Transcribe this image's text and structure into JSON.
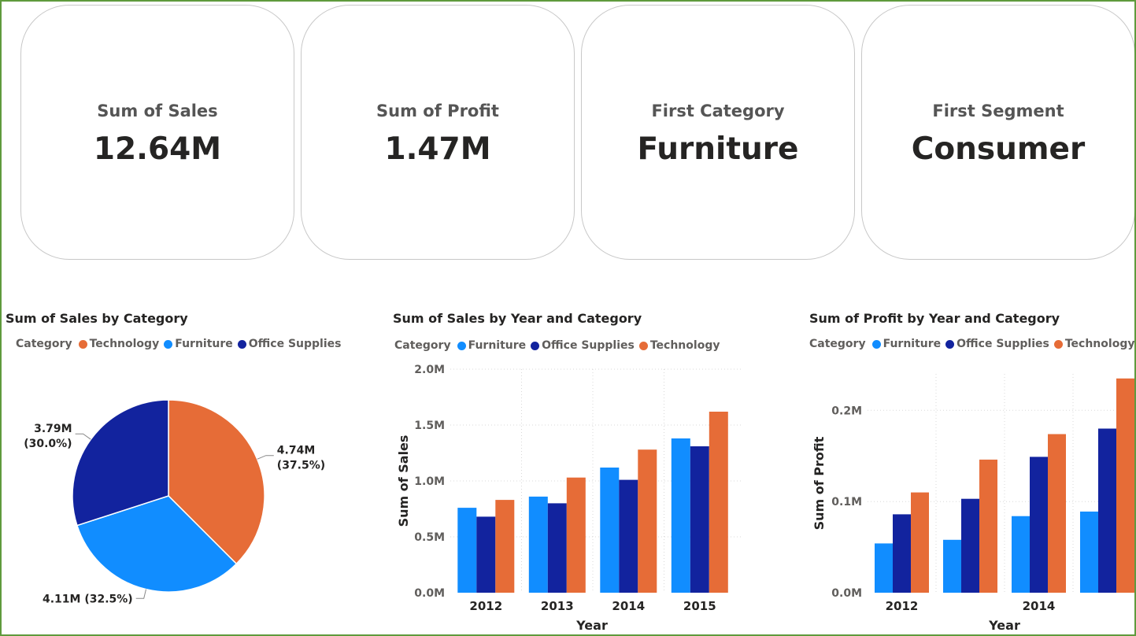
{
  "cards": [
    {
      "label": "Sum of Sales",
      "value": "12.64M"
    },
    {
      "label": "Sum of Profit",
      "value": "1.47M"
    },
    {
      "label": "First Category",
      "value": "Furniture"
    },
    {
      "label": "First Segment",
      "value": "Consumer"
    }
  ],
  "colors": {
    "Furniture": "#118dff",
    "Office Supplies": "#12239e",
    "Technology": "#e66c37",
    "frame": "#5f9a3d"
  },
  "legend_title": "Category",
  "chart_data": [
    {
      "type": "pie",
      "title": "Sum of Sales by Category",
      "legend": [
        "Technology",
        "Furniture",
        "Office Supplies"
      ],
      "slices": [
        {
          "name": "Technology",
          "value": 4.74,
          "label_line1": "4.74M",
          "label_line2": "(37.5%)"
        },
        {
          "name": "Furniture",
          "value": 4.11,
          "label_line1": "4.11M (32.5%)",
          "label_line2": ""
        },
        {
          "name": "Office Supplies",
          "value": 3.79,
          "label_line1": "3.79M",
          "label_line2": "(30.0%)"
        }
      ]
    },
    {
      "type": "bar",
      "title": "Sum of Sales by Year and Category",
      "xlabel": "Year",
      "ylabel": "Sum of Sales",
      "ylim": [
        0,
        2.0
      ],
      "yticks": [
        0,
        0.5,
        1.0,
        1.5,
        2.0
      ],
      "ytick_labels": [
        "0.0M",
        "0.5M",
        "1.0M",
        "1.5M",
        "2.0M"
      ],
      "grid": true,
      "legend_position": "top-left",
      "categories": [
        "2012",
        "2013",
        "2014",
        "2015"
      ],
      "x_tick_labels": [
        "2012",
        "2013",
        "2014",
        "2015"
      ],
      "series": [
        {
          "name": "Furniture",
          "values": [
            0.76,
            0.86,
            1.12,
            1.38
          ]
        },
        {
          "name": "Office Supplies",
          "values": [
            0.68,
            0.8,
            1.01,
            1.31
          ]
        },
        {
          "name": "Technology",
          "values": [
            0.83,
            1.03,
            1.28,
            1.62
          ]
        }
      ]
    },
    {
      "type": "bar",
      "title": "Sum of Profit by Year and Category",
      "xlabel": "Year",
      "ylabel": "Sum of Profit",
      "ylim": [
        0,
        0.24
      ],
      "yticks": [
        0,
        0.1,
        0.2
      ],
      "ytick_labels": [
        "0.0M",
        "0.1M",
        "0.2M"
      ],
      "grid": true,
      "legend_position": "top-left",
      "categories": [
        "2012",
        "2013",
        "2014",
        "2015"
      ],
      "x_tick_labels": [
        "2012",
        "",
        "2014",
        ""
      ],
      "series": [
        {
          "name": "Furniture",
          "values": [
            0.054,
            0.058,
            0.084,
            0.089
          ]
        },
        {
          "name": "Office Supplies",
          "values": [
            0.086,
            0.103,
            0.149,
            0.18
          ]
        },
        {
          "name": "Technology",
          "values": [
            0.11,
            0.146,
            0.174,
            0.235
          ]
        }
      ]
    }
  ]
}
